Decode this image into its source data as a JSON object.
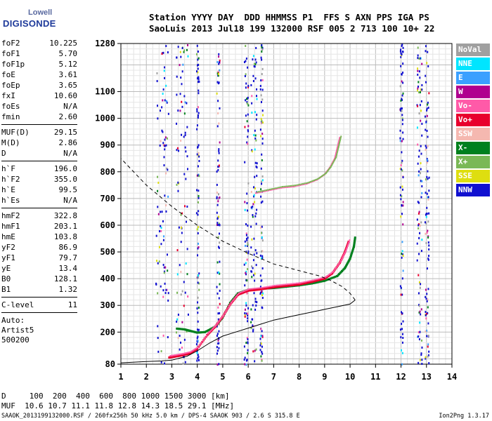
{
  "logo": {
    "line1": "Lowell",
    "line2": "DIGISONDE"
  },
  "header": {
    "line1": "Station YYYY DAY  DDD HHMMSS P1  FFS S AXN PPS IGA PS",
    "line2": "SaoLuis 2013 Jul18 199 132000 RSF 005 2 713 100 10+ 22"
  },
  "params": {
    "group1": [
      {
        "k": "foF2",
        "v": "10.225"
      },
      {
        "k": "foF1",
        "v": "5.70"
      },
      {
        "k": "foF1p",
        "v": "5.12"
      },
      {
        "k": "foE",
        "v": "3.61"
      },
      {
        "k": "foEp",
        "v": "3.65"
      },
      {
        "k": "fxI",
        "v": "10.60"
      },
      {
        "k": "foEs",
        "v": "N/A"
      },
      {
        "k": "fmin",
        "v": "2.60"
      }
    ],
    "group2": [
      {
        "k": "MUF(D)",
        "v": "29.15"
      },
      {
        "k": "M(D)",
        "v": "2.86"
      },
      {
        "k": "D",
        "v": "N/A"
      }
    ],
    "group3": [
      {
        "k": "h`F",
        "v": "196.0"
      },
      {
        "k": "h`F2",
        "v": "355.0"
      },
      {
        "k": "h`E",
        "v": "99.5"
      },
      {
        "k": "h`Es",
        "v": "N/A"
      }
    ],
    "group4": [
      {
        "k": "hmF2",
        "v": "322.8"
      },
      {
        "k": "hmF1",
        "v": "203.1"
      },
      {
        "k": "hmE",
        "v": "103.8"
      },
      {
        "k": "yF2",
        "v": "86.9"
      },
      {
        "k": "yF1",
        "v": "79.7"
      },
      {
        "k": "yE",
        "v": "13.4"
      },
      {
        "k": "B0",
        "v": "128.1"
      },
      {
        "k": "B1",
        "v": "1.32"
      }
    ],
    "group5": [
      {
        "k": "C-level",
        "v": "11"
      }
    ]
  },
  "auto": {
    "line1": "Auto:",
    "line2": "Artist5",
    "line3": "500200"
  },
  "legend": [
    {
      "label": "NoVal",
      "color": "#a0a0a0"
    },
    {
      "label": "NNE",
      "color": "#00e5ff"
    },
    {
      "label": "E",
      "color": "#3aa0ff"
    },
    {
      "label": "W",
      "color": "#b0008f"
    },
    {
      "label": "Vo-",
      "color": "#ff5aa8"
    },
    {
      "label": "Vo+",
      "color": "#e8002d"
    },
    {
      "label": "SSW",
      "color": "#f5b8b0"
    },
    {
      "label": "X-",
      "color": "#00801e"
    },
    {
      "label": "X+",
      "color": "#7ab856"
    },
    {
      "label": "SSE",
      "color": "#dede10"
    },
    {
      "label": "NNW",
      "color": "#1010d0"
    }
  ],
  "bottom": {
    "line1": "D     100  200  400  600  800 1000 1500 3000 [km]",
    "line2": "MUF  10.6 10.7 11.1 11.8 12.8 14.3 18.5 29.1 [MHz]"
  },
  "footer": {
    "left": "SAAOK_2013199132000.RSF / 260fx256h 50 kHz 5.0 km / DPS-4 SAAOK 903 / 2.6 S 315.8 E",
    "right": "Ion2Png 1.3.17"
  },
  "chart_data": {
    "type": "scatter",
    "xlim": [
      1,
      14
    ],
    "ylim": [
      80,
      1280
    ],
    "xticks": [
      1,
      2,
      3,
      4,
      5,
      6,
      7,
      8,
      9,
      10,
      11,
      12,
      13,
      14
    ],
    "yticks": [
      80,
      200,
      300,
      400,
      500,
      600,
      700,
      800,
      900,
      1000,
      1100,
      1280
    ],
    "grid": true,
    "x_trace": [
      [
        3.2,
        213
      ],
      [
        3.5,
        210
      ],
      [
        3.7,
        205
      ],
      [
        4.0,
        198
      ],
      [
        4.3,
        200
      ],
      [
        4.7,
        220
      ],
      [
        5.0,
        255
      ],
      [
        5.3,
        310
      ],
      [
        5.6,
        345
      ],
      [
        6.0,
        358
      ],
      [
        6.5,
        362
      ],
      [
        7.0,
        365
      ],
      [
        7.5,
        370
      ],
      [
        8.0,
        375
      ],
      [
        8.5,
        382
      ],
      [
        9.0,
        392
      ],
      [
        9.5,
        410
      ],
      [
        9.8,
        440
      ],
      [
        10.0,
        475
      ],
      [
        10.15,
        520
      ],
      [
        10.2,
        555
      ]
    ],
    "o_trace": [
      [
        2.9,
        105
      ],
      [
        3.1,
        108
      ],
      [
        3.4,
        113
      ],
      [
        3.7,
        120
      ],
      [
        4.0,
        138
      ],
      [
        4.4,
        190
      ],
      [
        4.7,
        220
      ],
      [
        5.0,
        258
      ],
      [
        5.3,
        305
      ],
      [
        5.6,
        340
      ],
      [
        6.0,
        355
      ],
      [
        6.5,
        360
      ],
      [
        7.0,
        368
      ],
      [
        7.5,
        373
      ],
      [
        8.0,
        378
      ],
      [
        8.5,
        388
      ],
      [
        9.0,
        400
      ],
      [
        9.3,
        420
      ],
      [
        9.6,
        460
      ],
      [
        9.8,
        500
      ],
      [
        9.95,
        540
      ]
    ],
    "upper_trace": [
      [
        6.3,
        720
      ],
      [
        6.8,
        730
      ],
      [
        7.3,
        740
      ],
      [
        7.8,
        745
      ],
      [
        8.3,
        755
      ],
      [
        8.7,
        770
      ],
      [
        9.0,
        790
      ],
      [
        9.2,
        815
      ],
      [
        9.4,
        850
      ],
      [
        9.5,
        890
      ],
      [
        9.6,
        930
      ]
    ],
    "profile_solid": [
      [
        1.0,
        85
      ],
      [
        2.0,
        90
      ],
      [
        2.6,
        92
      ],
      [
        3.0,
        95
      ],
      [
        3.6,
        110
      ],
      [
        4.0,
        130
      ],
      [
        4.5,
        160
      ],
      [
        5.0,
        185
      ],
      [
        5.5,
        200
      ],
      [
        6.0,
        215
      ],
      [
        6.5,
        230
      ],
      [
        7.0,
        245
      ],
      [
        7.5,
        255
      ],
      [
        8.0,
        265
      ],
      [
        8.5,
        275
      ],
      [
        9.0,
        285
      ],
      [
        9.5,
        295
      ],
      [
        10.0,
        305
      ],
      [
        10.2,
        320
      ]
    ],
    "profile_dashed": [
      [
        10.2,
        320
      ],
      [
        10.0,
        345
      ],
      [
        9.7,
        370
      ],
      [
        9.2,
        395
      ],
      [
        8.8,
        410
      ],
      [
        8.0,
        430
      ],
      [
        7.0,
        455
      ],
      [
        6.0,
        495
      ],
      [
        5.0,
        540
      ],
      [
        4.0,
        600
      ],
      [
        3.0,
        670
      ],
      [
        2.0,
        750
      ],
      [
        1.0,
        850
      ]
    ]
  }
}
